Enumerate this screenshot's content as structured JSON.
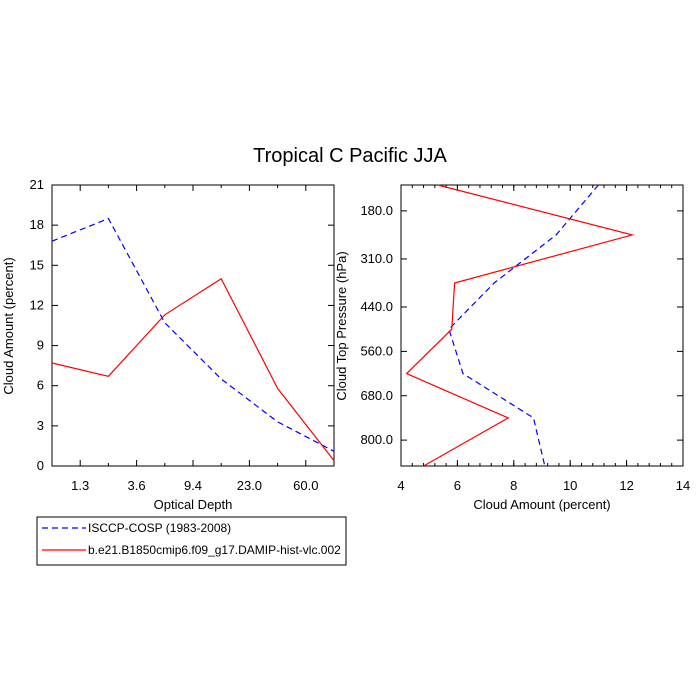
{
  "title": "Tropical C Pacific JJA",
  "legend": {
    "placement": "bottom-left",
    "items": [
      {
        "label": "ISCCP-COSP (1983-2008)",
        "color": "#0000ff",
        "dash": "dashed"
      },
      {
        "label": "b.e21.B1850cmip6.f09_g17.DAMIP-hist-vlc.002",
        "color": "#ff0000",
        "dash": "solid"
      }
    ]
  },
  "chart_data": [
    {
      "type": "line",
      "xlabel": "Optical Depth",
      "ylabel": "Cloud Amount (percent)",
      "x_ticklabels": [
        "1.3",
        "3.6",
        "9.4",
        "23.0",
        "60.0"
      ],
      "y_ticklabels": [
        "0",
        "3",
        "6",
        "9",
        "12",
        "15",
        "18",
        "21"
      ],
      "ylim": [
        0,
        21
      ],
      "y_ticks": [
        0,
        3,
        6,
        9,
        12,
        15,
        18,
        21
      ],
      "x_index_range": [
        0,
        5
      ],
      "series": [
        {
          "name": "ISCCP-COSP (1983-2008)",
          "color": "#0000ff",
          "x_index": [
            0,
            1,
            2,
            3,
            4,
            5
          ],
          "values": [
            16.8,
            18.5,
            10.7,
            6.5,
            3.3,
            1.1
          ]
        },
        {
          "name": "b.e21.B1850cmip6.f09_g17.DAMIP-hist-vlc.002",
          "color": "#ff0000",
          "x_index": [
            0,
            1,
            2,
            3,
            4,
            5
          ],
          "values": [
            7.7,
            6.7,
            11.3,
            14.0,
            5.8,
            0.4
          ]
        }
      ]
    },
    {
      "type": "line",
      "xlabel": "Cloud Amount (percent)",
      "ylabel": "Cloud Top Pressure (hPa)",
      "x_ticklabels": [
        "4",
        "6",
        "8",
        "10",
        "12",
        "14"
      ],
      "x_ticks": [
        4,
        6,
        8,
        10,
        12,
        14
      ],
      "xlim": [
        4,
        14
      ],
      "y_ticklabels": [
        "180.0",
        "310.0",
        "440.0",
        "560.0",
        "680.0",
        "800.0"
      ],
      "y_ticks": [
        180,
        310,
        440,
        560,
        680,
        800
      ],
      "ylim": [
        870,
        110
      ],
      "series": [
        {
          "name": "ISCCP-COSP (1983-2008)",
          "color": "#0000ff",
          "pressure": [
            110,
            245,
            375,
            500,
            620,
            740,
            870
          ],
          "values": [
            11.0,
            9.5,
            7.3,
            5.7,
            6.2,
            8.7,
            9.1
          ]
        },
        {
          "name": "b.e21.B1850cmip6.f09_g17.DAMIP-hist-vlc.002",
          "color": "#ff0000",
          "pressure": [
            110,
            245,
            375,
            500,
            620,
            740,
            870
          ],
          "values": [
            5.3,
            12.2,
            5.9,
            5.8,
            4.2,
            7.8,
            4.8
          ]
        }
      ]
    }
  ]
}
